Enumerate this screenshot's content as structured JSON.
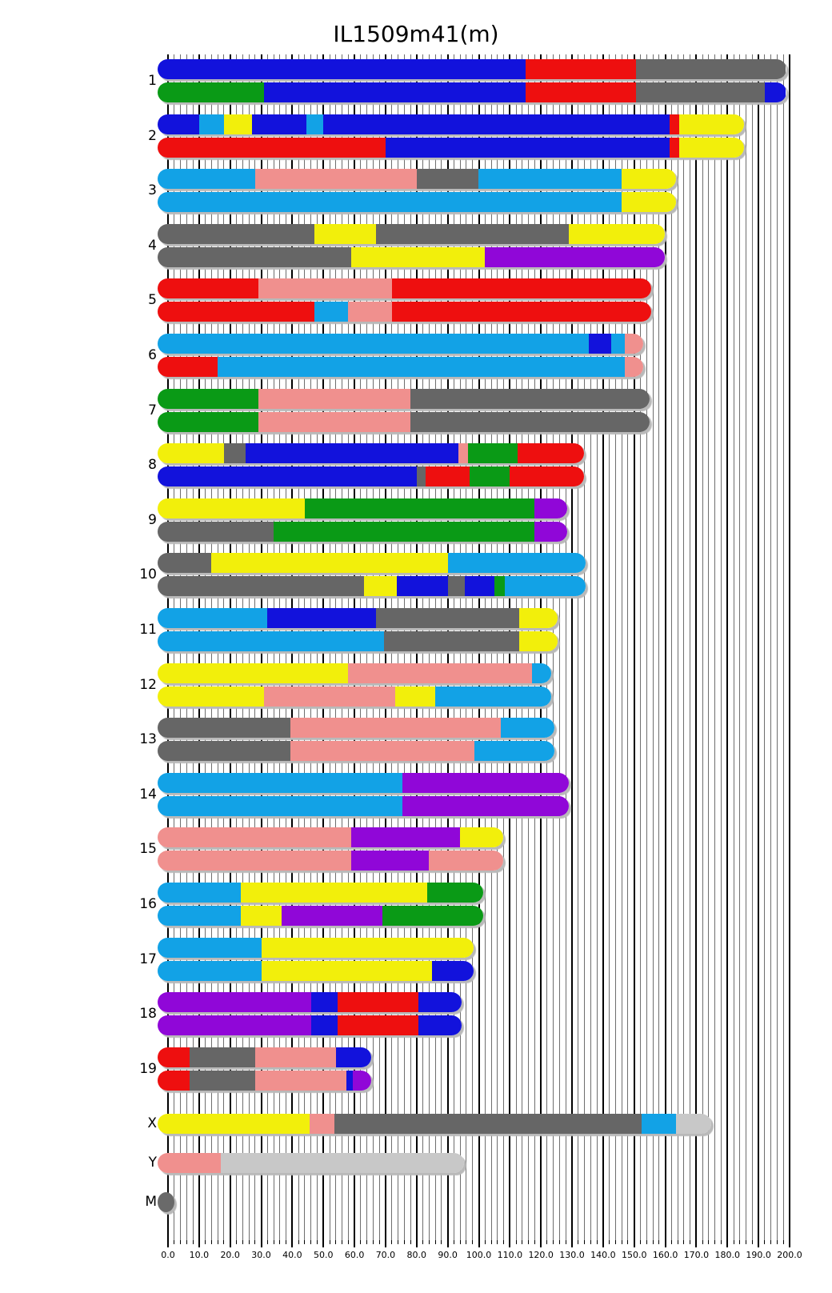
{
  "title": "IL1509m41(m)",
  "chart_data": {
    "type": "ideogram-bar",
    "title": "IL1509m41(m)",
    "xlabel": "",
    "ylabel": "",
    "axis": {
      "min": 0,
      "max": 200,
      "major_step": 10,
      "minor_step": 2,
      "tick_labels": [
        "0.0",
        "10.0",
        "20.0",
        "30.0",
        "40.0",
        "50.0",
        "60.0",
        "70.0",
        "80.0",
        "90.0",
        "100.0",
        "110.0",
        "120.0",
        "130.0",
        "140.0",
        "150.0",
        "160.0",
        "170.0",
        "180.0",
        "190.0",
        "200.0"
      ]
    },
    "legend": "none",
    "grid": true,
    "colors": {
      "blue": "#1212dc",
      "red": "#ee0f0f",
      "skyblue": "#12a2e6",
      "yellow": "#f2ef0b",
      "green": "#0a9a16",
      "gray": "#666666",
      "pink": "#f0908e",
      "purple": "#9007d8",
      "silver": "#c8c8c8",
      "mito": "#6a6a6a"
    },
    "chromosomes": [
      {
        "name": "1",
        "length": 195.5,
        "strands": [
          [
            [
              "blue",
              0,
              115
            ],
            [
              "red",
              115,
              150.5
            ],
            [
              "gray",
              150.5,
              195.5
            ]
          ],
          [
            [
              "green",
              0,
              31
            ],
            [
              "blue",
              31,
              115
            ],
            [
              "red",
              115,
              150.5
            ],
            [
              "gray",
              150.5,
              192
            ],
            [
              "blue",
              192,
              195.5
            ]
          ]
        ]
      },
      {
        "name": "2",
        "length": 182,
        "strands": [
          [
            [
              "blue",
              0,
              10
            ],
            [
              "skyblue",
              10,
              18
            ],
            [
              "yellow",
              18,
              27
            ],
            [
              "blue",
              27,
              44.5
            ],
            [
              "skyblue",
              44.5,
              50
            ],
            [
              "blue",
              50,
              161.5
            ],
            [
              "red",
              161.5,
              164.5
            ],
            [
              "yellow",
              164.5,
              182
            ]
          ],
          [
            [
              "red",
              0,
              70
            ],
            [
              "blue",
              70,
              161.5
            ],
            [
              "red",
              161.5,
              164.5
            ],
            [
              "yellow",
              164.5,
              182
            ]
          ]
        ]
      },
      {
        "name": "3",
        "length": 160,
        "strands": [
          [
            [
              "skyblue",
              0,
              28
            ],
            [
              "pink",
              28,
              80
            ],
            [
              "gray",
              80,
              100
            ],
            [
              "skyblue",
              100,
              146
            ],
            [
              "yellow",
              146,
              160
            ]
          ],
          [
            [
              "skyblue",
              0,
              146
            ],
            [
              "yellow",
              146,
              160
            ]
          ]
        ]
      },
      {
        "name": "4",
        "length": 156.5,
        "strands": [
          [
            [
              "gray",
              0,
              47
            ],
            [
              "yellow",
              47,
              67
            ],
            [
              "gray",
              67,
              129
            ],
            [
              "yellow",
              129,
              156.5
            ]
          ],
          [
            [
              "gray",
              0,
              59
            ],
            [
              "yellow",
              59,
              102
            ],
            [
              "purple",
              102,
              156.5
            ]
          ]
        ]
      },
      {
        "name": "5",
        "length": 152,
        "strands": [
          [
            [
              "red",
              0,
              29
            ],
            [
              "pink",
              29,
              72
            ],
            [
              "red",
              72,
              152
            ]
          ],
          [
            [
              "red",
              0,
              47
            ],
            [
              "skyblue",
              47,
              58
            ],
            [
              "pink",
              58,
              72
            ],
            [
              "red",
              72,
              152
            ]
          ]
        ]
      },
      {
        "name": "6",
        "length": 149.5,
        "strands": [
          [
            [
              "skyblue",
              0,
              135.5
            ],
            [
              "blue",
              135.5,
              142.5
            ],
            [
              "skyblue",
              142.5,
              147
            ],
            [
              "pink",
              147,
              149.5
            ]
          ],
          [
            [
              "red",
              0,
              16
            ],
            [
              "skyblue",
              16,
              147
            ],
            [
              "pink",
              147,
              149.5
            ]
          ]
        ]
      },
      {
        "name": "7",
        "length": 151.5,
        "strands": [
          [
            [
              "green",
              0,
              29
            ],
            [
              "pink",
              29,
              78
            ],
            [
              "gray",
              78,
              151.5
            ]
          ],
          [
            [
              "green",
              0,
              29
            ],
            [
              "pink",
              29,
              78
            ],
            [
              "gray",
              78,
              151.5
            ]
          ]
        ]
      },
      {
        "name": "8",
        "length": 130.5,
        "strands": [
          [
            [
              "yellow",
              0,
              18
            ],
            [
              "gray",
              18,
              25
            ],
            [
              "blue",
              25,
              93.5
            ],
            [
              "pink",
              93.5,
              96.5
            ],
            [
              "green",
              96.5,
              112.5
            ],
            [
              "red",
              112.5,
              130.5
            ]
          ],
          [
            [
              "blue",
              0,
              80
            ],
            [
              "gray",
              80,
              83
            ],
            [
              "red",
              83,
              97
            ],
            [
              "green",
              97,
              110
            ],
            [
              "red",
              110,
              130.5
            ]
          ]
        ]
      },
      {
        "name": "9",
        "length": 125,
        "strands": [
          [
            [
              "yellow",
              0,
              44
            ],
            [
              "green",
              44,
              118
            ],
            [
              "purple",
              118,
              125
            ]
          ],
          [
            [
              "gray",
              0,
              34
            ],
            [
              "green",
              34,
              118
            ],
            [
              "purple",
              118,
              125
            ]
          ]
        ]
      },
      {
        "name": "10",
        "length": 131,
        "strands": [
          [
            [
              "gray",
              0,
              14
            ],
            [
              "yellow",
              14,
              90
            ],
            [
              "skyblue",
              90,
              131
            ]
          ],
          [
            [
              "gray",
              0,
              63
            ],
            [
              "yellow",
              63,
              73.5
            ],
            [
              "blue",
              73.5,
              90
            ],
            [
              "gray",
              90,
              95.5
            ],
            [
              "blue",
              95.5,
              105
            ],
            [
              "green",
              105,
              108.5
            ],
            [
              "skyblue",
              108.5,
              131
            ]
          ]
        ]
      },
      {
        "name": "11",
        "length": 122,
        "strands": [
          [
            [
              "skyblue",
              0,
              32
            ],
            [
              "blue",
              32,
              67
            ],
            [
              "gray",
              67,
              113
            ],
            [
              "yellow",
              113,
              122
            ]
          ],
          [
            [
              "skyblue",
              0,
              69.5
            ],
            [
              "gray",
              69.5,
              113
            ],
            [
              "yellow",
              113,
              122
            ]
          ]
        ]
      },
      {
        "name": "12",
        "length": 120,
        "strands": [
          [
            [
              "yellow",
              0,
              58
            ],
            [
              "pink",
              58,
              117
            ],
            [
              "skyblue",
              117,
              120
            ]
          ],
          [
            [
              "yellow",
              0,
              31
            ],
            [
              "pink",
              31,
              73
            ],
            [
              "yellow",
              73,
              86
            ],
            [
              "skyblue",
              86,
              120
            ]
          ]
        ]
      },
      {
        "name": "13",
        "length": 121,
        "strands": [
          [
            [
              "gray",
              0,
              39.5
            ],
            [
              "pink",
              39.5,
              107
            ],
            [
              "skyblue",
              107,
              121
            ]
          ],
          [
            [
              "gray",
              0,
              39.5
            ],
            [
              "pink",
              39.5,
              98.5
            ],
            [
              "skyblue",
              98.5,
              121
            ]
          ]
        ]
      },
      {
        "name": "14",
        "length": 125.5,
        "strands": [
          [
            [
              "skyblue",
              0,
              75.5
            ],
            [
              "purple",
              75.5,
              125.5
            ]
          ],
          [
            [
              "skyblue",
              0,
              75.5
            ],
            [
              "purple",
              75.5,
              125.5
            ]
          ]
        ]
      },
      {
        "name": "15",
        "length": 104.5,
        "strands": [
          [
            [
              "pink",
              0,
              59
            ],
            [
              "purple",
              59,
              94
            ],
            [
              "yellow",
              94,
              104.5
            ]
          ],
          [
            [
              "pink",
              0,
              59
            ],
            [
              "purple",
              59,
              84
            ],
            [
              "pink",
              84,
              104.5
            ]
          ]
        ]
      },
      {
        "name": "16",
        "length": 98,
        "strands": [
          [
            [
              "skyblue",
              0,
              23.5
            ],
            [
              "yellow",
              23.5,
              83.5
            ],
            [
              "green",
              83.5,
              98
            ]
          ],
          [
            [
              "skyblue",
              0,
              23.5
            ],
            [
              "yellow",
              23.5,
              36.5
            ],
            [
              "purple",
              36.5,
              69
            ],
            [
              "green",
              69,
              98
            ]
          ]
        ]
      },
      {
        "name": "17",
        "length": 95,
        "strands": [
          [
            [
              "skyblue",
              0,
              30
            ],
            [
              "yellow",
              30,
              95
            ]
          ],
          [
            [
              "skyblue",
              0,
              30
            ],
            [
              "yellow",
              30,
              85
            ],
            [
              "blue",
              85,
              95
            ]
          ]
        ]
      },
      {
        "name": "18",
        "length": 91,
        "strands": [
          [
            [
              "purple",
              0,
              46
            ],
            [
              "blue",
              46,
              54.5
            ],
            [
              "red",
              54.5,
              80.5
            ],
            [
              "blue",
              80.5,
              91
            ]
          ],
          [
            [
              "purple",
              0,
              46
            ],
            [
              "blue",
              46,
              54.5
            ],
            [
              "red",
              54.5,
              80.5
            ],
            [
              "blue",
              80.5,
              91
            ]
          ]
        ]
      },
      {
        "name": "19",
        "length": 62,
        "strands": [
          [
            [
              "red",
              0,
              7
            ],
            [
              "gray",
              7,
              28
            ],
            [
              "pink",
              28,
              54
            ],
            [
              "blue",
              54,
              62
            ]
          ],
          [
            [
              "red",
              0,
              7
            ],
            [
              "gray",
              7,
              28
            ],
            [
              "pink",
              28,
              57.5
            ],
            [
              "blue",
              57.5,
              59.5
            ],
            [
              "purple",
              59.5,
              62
            ]
          ]
        ]
      },
      {
        "name": "X",
        "length": 171.5,
        "strands": [
          [
            [
              "yellow",
              0,
              45.5
            ],
            [
              "pink",
              45.5,
              53.5
            ],
            [
              "gray",
              53.5,
              152.5
            ],
            [
              "skyblue",
              152.5,
              163.5
            ],
            [
              "silver",
              163.5,
              171.5
            ]
          ]
        ]
      },
      {
        "name": "Y",
        "length": 92,
        "strands": [
          [
            [
              "pink",
              0,
              17
            ],
            [
              "silver",
              17,
              92
            ]
          ]
        ]
      },
      {
        "name": "M",
        "length": 0,
        "dot": true,
        "strands": []
      }
    ]
  }
}
